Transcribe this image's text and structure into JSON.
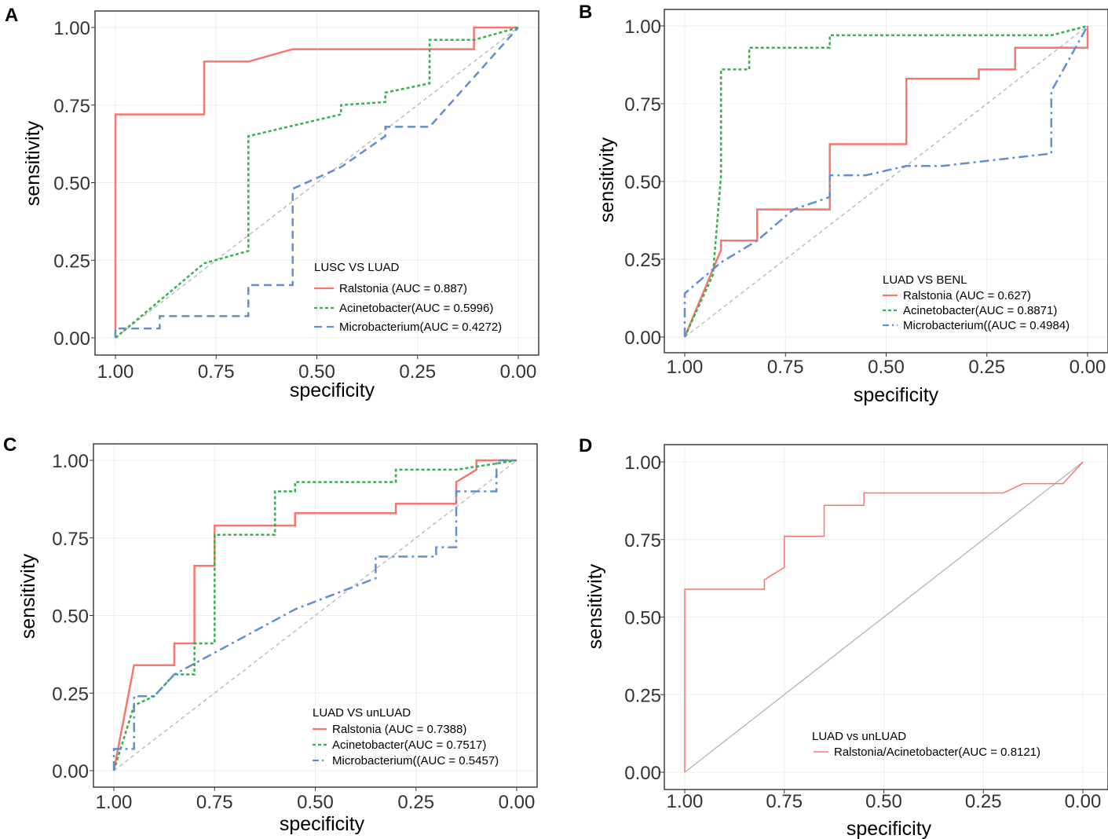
{
  "chart_data": [
    {
      "type": "line",
      "panel": "A",
      "xlabel": "specificity",
      "ylabel": "sensitivity",
      "xlim": [
        1.0,
        0.0
      ],
      "ylim": [
        0.0,
        1.0
      ],
      "xticks": [
        "1.00",
        "0.75",
        "0.50",
        "0.25",
        "0.00"
      ],
      "yticks": [
        "0.00",
        "0.25",
        "0.50",
        "0.75",
        "1.00"
      ],
      "legend_title": "LUSC VS LUAD",
      "legend_position": "bottom-right",
      "diagonal": true,
      "series": [
        {
          "name": "Ralstonia (AUC = 0.887)",
          "color": "#F8766D",
          "dash": "solid",
          "points": [
            [
              1.0,
              0.0
            ],
            [
              1.0,
              0.72
            ],
            [
              0.78,
              0.72
            ],
            [
              0.78,
              0.89
            ],
            [
              0.67,
              0.89
            ],
            [
              0.56,
              0.93
            ],
            [
              0.11,
              0.93
            ],
            [
              0.11,
              1.0
            ],
            [
              0.0,
              1.0
            ]
          ]
        },
        {
          "name": "Acinetobacter(AUC = 0.5996)",
          "color": "#32B24A",
          "dash": "short",
          "points": [
            [
              1.0,
              0.0
            ],
            [
              0.78,
              0.24
            ],
            [
              0.67,
              0.28
            ],
            [
              0.67,
              0.65
            ],
            [
              0.44,
              0.72
            ],
            [
              0.44,
              0.75
            ],
            [
              0.33,
              0.76
            ],
            [
              0.33,
              0.79
            ],
            [
              0.22,
              0.82
            ],
            [
              0.22,
              0.96
            ],
            [
              0.11,
              0.96
            ],
            [
              0.0,
              1.0
            ]
          ]
        },
        {
          "name": "Microbacterium(AUC = 0.4272)",
          "color": "#5F8FD0",
          "dash": "long",
          "points": [
            [
              1.0,
              0.0
            ],
            [
              1.0,
              0.03
            ],
            [
              0.89,
              0.03
            ],
            [
              0.89,
              0.07
            ],
            [
              0.67,
              0.07
            ],
            [
              0.67,
              0.17
            ],
            [
              0.56,
              0.17
            ],
            [
              0.56,
              0.48
            ],
            [
              0.44,
              0.55
            ],
            [
              0.33,
              0.65
            ],
            [
              0.33,
              0.68
            ],
            [
              0.22,
              0.68
            ],
            [
              0.0,
              1.0
            ]
          ]
        }
      ]
    },
    {
      "type": "line",
      "panel": "B",
      "xlabel": "specificity",
      "ylabel": "sensitivity",
      "xlim": [
        1.0,
        0.0
      ],
      "ylim": [
        0.0,
        1.0
      ],
      "xticks": [
        "1.00",
        "0.75",
        "0.50",
        "0.25",
        "0.00"
      ],
      "yticks": [
        "0.00",
        "0.25",
        "0.50",
        "0.75",
        "1.00"
      ],
      "legend_title": "LUAD VS BENL",
      "legend_position": "bottom-right",
      "diagonal": true,
      "series": [
        {
          "name": "Ralstonia (AUC = 0.627)",
          "color": "#F8766D",
          "dash": "solid",
          "points": [
            [
              1.0,
              0.0
            ],
            [
              0.91,
              0.28
            ],
            [
              0.91,
              0.31
            ],
            [
              0.82,
              0.31
            ],
            [
              0.82,
              0.41
            ],
            [
              0.64,
              0.41
            ],
            [
              0.64,
              0.62
            ],
            [
              0.45,
              0.62
            ],
            [
              0.45,
              0.83
            ],
            [
              0.27,
              0.83
            ],
            [
              0.27,
              0.86
            ],
            [
              0.18,
              0.86
            ],
            [
              0.18,
              0.93
            ],
            [
              0.0,
              0.93
            ],
            [
              0.0,
              1.0
            ]
          ]
        },
        {
          "name": "Acinetobacter(AUC = 0.8871)",
          "color": "#32B24A",
          "dash": "short",
          "points": [
            [
              1.0,
              0.0
            ],
            [
              0.93,
              0.2
            ],
            [
              0.91,
              0.52
            ],
            [
              0.91,
              0.86
            ],
            [
              0.84,
              0.86
            ],
            [
              0.84,
              0.93
            ],
            [
              0.64,
              0.93
            ],
            [
              0.64,
              0.97
            ],
            [
              0.09,
              0.97
            ],
            [
              0.0,
              1.0
            ]
          ]
        },
        {
          "name": "Microbacterium((AUC = 0.4984)",
          "color": "#5F8FD0",
          "dash": "longshort",
          "points": [
            [
              1.0,
              0.0
            ],
            [
              1.0,
              0.14
            ],
            [
              0.91,
              0.24
            ],
            [
              0.82,
              0.31
            ],
            [
              0.73,
              0.41
            ],
            [
              0.64,
              0.45
            ],
            [
              0.64,
              0.52
            ],
            [
              0.55,
              0.52
            ],
            [
              0.45,
              0.55
            ],
            [
              0.36,
              0.55
            ],
            [
              0.09,
              0.59
            ],
            [
              0.09,
              0.79
            ],
            [
              0.0,
              1.0
            ]
          ]
        }
      ]
    },
    {
      "type": "line",
      "panel": "C",
      "xlabel": "specificity",
      "ylabel": "sensitivity",
      "xlim": [
        1.0,
        0.0
      ],
      "ylim": [
        0.0,
        1.0
      ],
      "xticks": [
        "1.00",
        "0.75",
        "0.50",
        "0.25",
        "0.00"
      ],
      "yticks": [
        "0.00",
        "0.25",
        "0.50",
        "0.75",
        "1.00"
      ],
      "legend_title": "LUAD VS unLUAD",
      "legend_position": "bottom-right",
      "diagonal": true,
      "series": [
        {
          "name": "Ralstonia  (AUC = 0.7388)",
          "color": "#F8766D",
          "dash": "solid",
          "points": [
            [
              1.0,
              0.0
            ],
            [
              0.95,
              0.34
            ],
            [
              0.85,
              0.34
            ],
            [
              0.85,
              0.41
            ],
            [
              0.8,
              0.41
            ],
            [
              0.8,
              0.66
            ],
            [
              0.75,
              0.66
            ],
            [
              0.75,
              0.79
            ],
            [
              0.55,
              0.79
            ],
            [
              0.55,
              0.83
            ],
            [
              0.3,
              0.83
            ],
            [
              0.3,
              0.86
            ],
            [
              0.15,
              0.86
            ],
            [
              0.15,
              0.93
            ],
            [
              0.1,
              0.97
            ],
            [
              0.1,
              1.0
            ],
            [
              0.0,
              1.0
            ]
          ]
        },
        {
          "name": "Acinetobacter(AUC = 0.7517)",
          "color": "#32B24A",
          "dash": "short",
          "points": [
            [
              1.0,
              0.0
            ],
            [
              0.95,
              0.21
            ],
            [
              0.9,
              0.24
            ],
            [
              0.85,
              0.31
            ],
            [
              0.8,
              0.31
            ],
            [
              0.8,
              0.41
            ],
            [
              0.75,
              0.41
            ],
            [
              0.75,
              0.76
            ],
            [
              0.6,
              0.76
            ],
            [
              0.6,
              0.9
            ],
            [
              0.55,
              0.9
            ],
            [
              0.55,
              0.93
            ],
            [
              0.3,
              0.93
            ],
            [
              0.3,
              0.97
            ],
            [
              0.15,
              0.97
            ],
            [
              0.0,
              1.0
            ]
          ]
        },
        {
          "name": "Microbacterium((AUC = 0.5457)",
          "color": "#5F8FD0",
          "dash": "longshort",
          "points": [
            [
              1.0,
              0.0
            ],
            [
              1.0,
              0.07
            ],
            [
              0.95,
              0.07
            ],
            [
              0.95,
              0.24
            ],
            [
              0.9,
              0.24
            ],
            [
              0.85,
              0.31
            ],
            [
              0.55,
              0.52
            ],
            [
              0.35,
              0.62
            ],
            [
              0.35,
              0.69
            ],
            [
              0.2,
              0.69
            ],
            [
              0.2,
              0.72
            ],
            [
              0.15,
              0.72
            ],
            [
              0.15,
              0.9
            ],
            [
              0.05,
              0.9
            ],
            [
              0.05,
              1.0
            ],
            [
              0.0,
              1.0
            ]
          ]
        }
      ]
    },
    {
      "type": "line",
      "panel": "D",
      "xlabel": "specificity",
      "ylabel": "sensitivity",
      "xlim": [
        1.0,
        0.0
      ],
      "ylim": [
        0.0,
        1.0
      ],
      "xticks": [
        "1.00",
        "0.75",
        "0.50",
        "0.25",
        "0.00"
      ],
      "yticks": [
        "0.00",
        "0.25",
        "0.50",
        "0.75",
        "1.00"
      ],
      "legend_title": "LUAD vs unLUAD",
      "legend_position": "bottom-right",
      "diagonal": true,
      "series": [
        {
          "name": "Ralstonia/Acinetobacter(AUC = 0.8121)",
          "color": "#F8766D",
          "dash": "solid",
          "points": [
            [
              1.0,
              0.0
            ],
            [
              1.0,
              0.59
            ],
            [
              0.8,
              0.59
            ],
            [
              0.8,
              0.62
            ],
            [
              0.75,
              0.66
            ],
            [
              0.75,
              0.76
            ],
            [
              0.65,
              0.76
            ],
            [
              0.65,
              0.86
            ],
            [
              0.55,
              0.86
            ],
            [
              0.55,
              0.9
            ],
            [
              0.2,
              0.9
            ],
            [
              0.15,
              0.93
            ],
            [
              0.05,
              0.93
            ],
            [
              0.0,
              1.0
            ]
          ]
        }
      ]
    }
  ]
}
